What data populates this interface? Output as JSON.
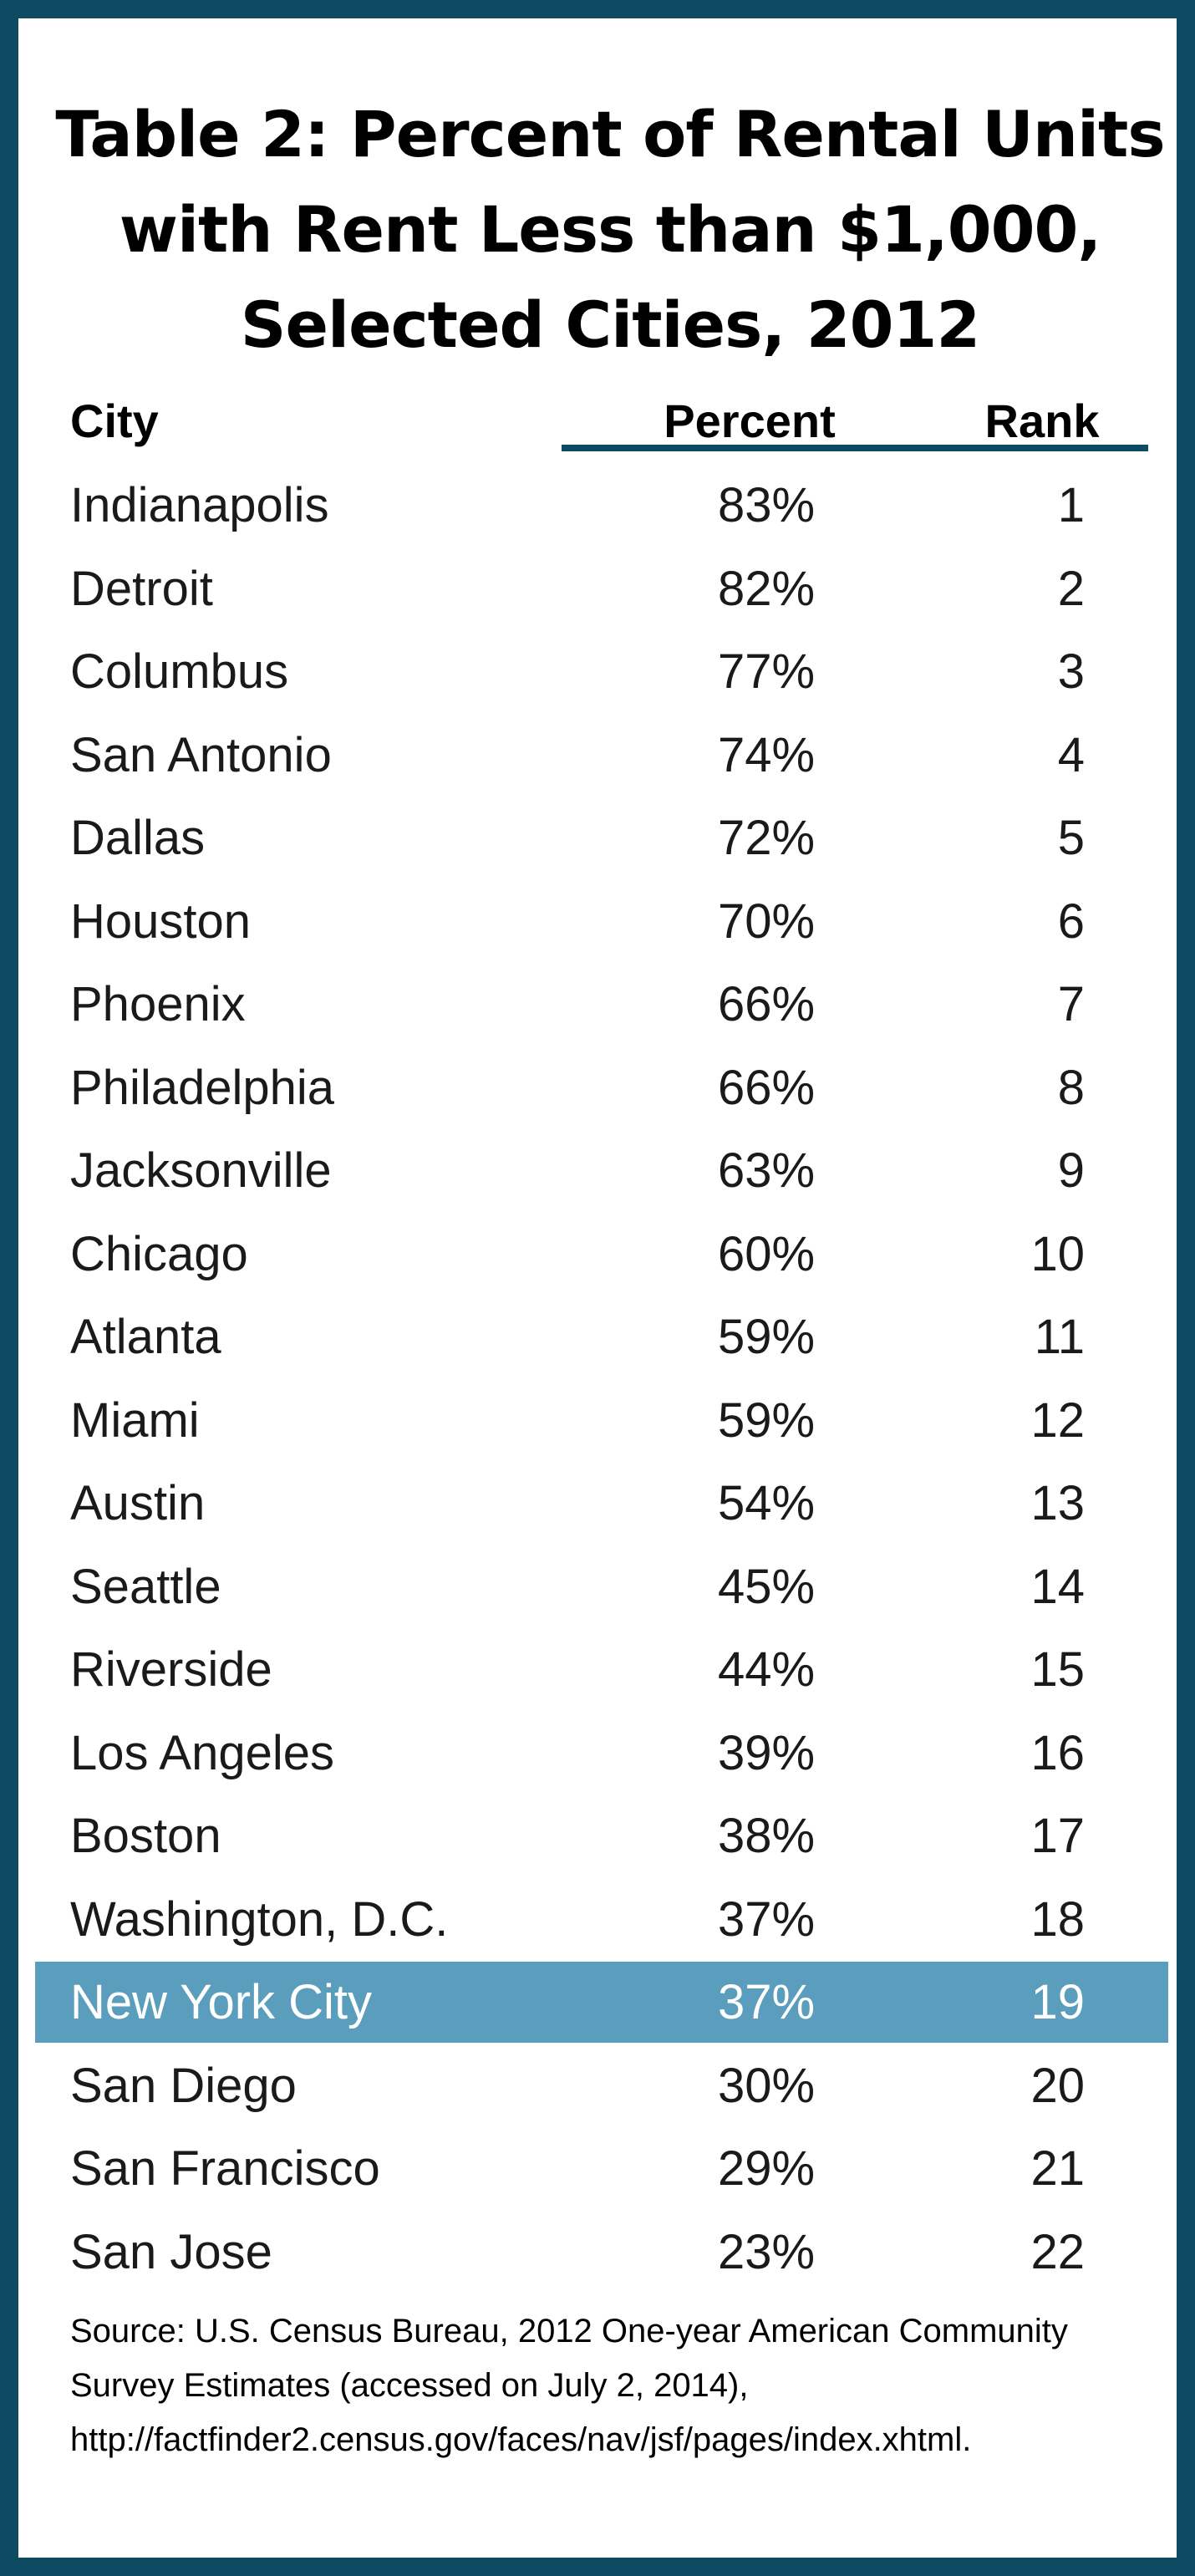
{
  "title": {
    "lines": [
      "Table 2: Percent of Rental Units",
      "with Rent Less than $1,000,",
      "Selected Cities, 2012"
    ]
  },
  "columns": {
    "city": "City",
    "percent": "Percent",
    "rank": "Rank"
  },
  "rows": [
    {
      "city": "Indianapolis",
      "percent": "83%",
      "rank": "1"
    },
    {
      "city": "Detroit",
      "percent": "82%",
      "rank": "2"
    },
    {
      "city": "Columbus",
      "percent": "77%",
      "rank": "3"
    },
    {
      "city": "San Antonio",
      "percent": "74%",
      "rank": "4"
    },
    {
      "city": "Dallas",
      "percent": "72%",
      "rank": "5"
    },
    {
      "city": "Houston",
      "percent": "70%",
      "rank": "6"
    },
    {
      "city": "Phoenix",
      "percent": "66%",
      "rank": "7"
    },
    {
      "city": "Philadelphia",
      "percent": "66%",
      "rank": "8"
    },
    {
      "city": "Jacksonville",
      "percent": "63%",
      "rank": "9"
    },
    {
      "city": "Chicago",
      "percent": "60%",
      "rank": "10"
    },
    {
      "city": "Atlanta",
      "percent": "59%",
      "rank": "11"
    },
    {
      "city": "Miami",
      "percent": "59%",
      "rank": "12"
    },
    {
      "city": "Austin",
      "percent": "54%",
      "rank": "13"
    },
    {
      "city": "Seattle",
      "percent": "45%",
      "rank": "14"
    },
    {
      "city": "Riverside",
      "percent": "44%",
      "rank": "15"
    },
    {
      "city": "Los Angeles",
      "percent": "39%",
      "rank": "16"
    },
    {
      "city": "Boston",
      "percent": "38%",
      "rank": "17"
    },
    {
      "city": "Washington, D.C.",
      "percent": "37%",
      "rank": "18"
    },
    {
      "city": "New York City",
      "percent": "37%",
      "rank": "19",
      "highlight": true
    },
    {
      "city": "San Diego",
      "percent": "30%",
      "rank": "20"
    },
    {
      "city": "San Francisco",
      "percent": "29%",
      "rank": "21"
    },
    {
      "city": "San Jose",
      "percent": "23%",
      "rank": "22"
    }
  ],
  "source": {
    "lines": [
      "Source: U.S. Census Bureau, 2012 One-year American Community",
      "Survey Estimates (accessed on July 2, 2014),",
      "http://factfinder2.census.gov/faces/nav/jsf/pages/index.xhtml."
    ]
  },
  "colors": {
    "border": "#0f4a63",
    "highlight_row": "#5b9dbd",
    "header_rule": "#0f4a63"
  }
}
